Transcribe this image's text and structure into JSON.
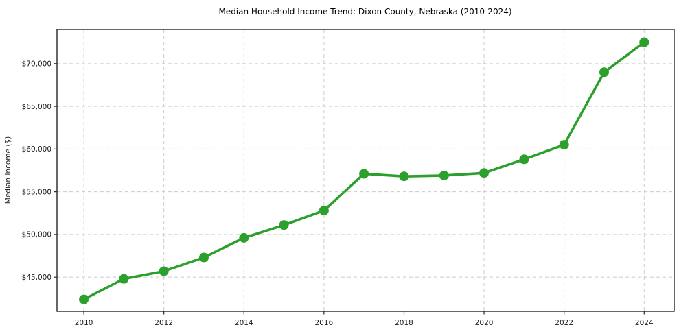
{
  "chart_data": {
    "type": "line",
    "title": "Median Household Income Trend: Dixon County, Nebraska (2010-2024)",
    "xlabel": "",
    "ylabel": "Median Income ($)",
    "x": [
      2010,
      2011,
      2012,
      2013,
      2014,
      2015,
      2016,
      2017,
      2018,
      2019,
      2020,
      2021,
      2022,
      2023,
      2024
    ],
    "values": [
      42400,
      44800,
      45700,
      47300,
      49600,
      51100,
      52800,
      57100,
      56800,
      56900,
      57200,
      58800,
      60500,
      69000,
      72500
    ],
    "xticks": [
      2010,
      2012,
      2014,
      2016,
      2018,
      2020,
      2022,
      2024
    ],
    "xtick_labels": [
      "2010",
      "2012",
      "2014",
      "2016",
      "2018",
      "2020",
      "2022",
      "2024"
    ],
    "yticks": [
      45000,
      50000,
      55000,
      60000,
      65000,
      70000
    ],
    "ytick_labels": [
      "$45,000",
      "$50,000",
      "$55,000",
      "$60,000",
      "$65,000",
      "$70,000"
    ],
    "xlim": [
      2009.33,
      2024.75
    ],
    "ylim": [
      41000,
      74000
    ],
    "grid": true,
    "legend_position": "none",
    "marker": "circle",
    "colors": {
      "line": "#2ca02c",
      "grid": "#cccccc",
      "axis": "#262626",
      "text": "#1a1a1a",
      "background": "#ffffff"
    }
  }
}
